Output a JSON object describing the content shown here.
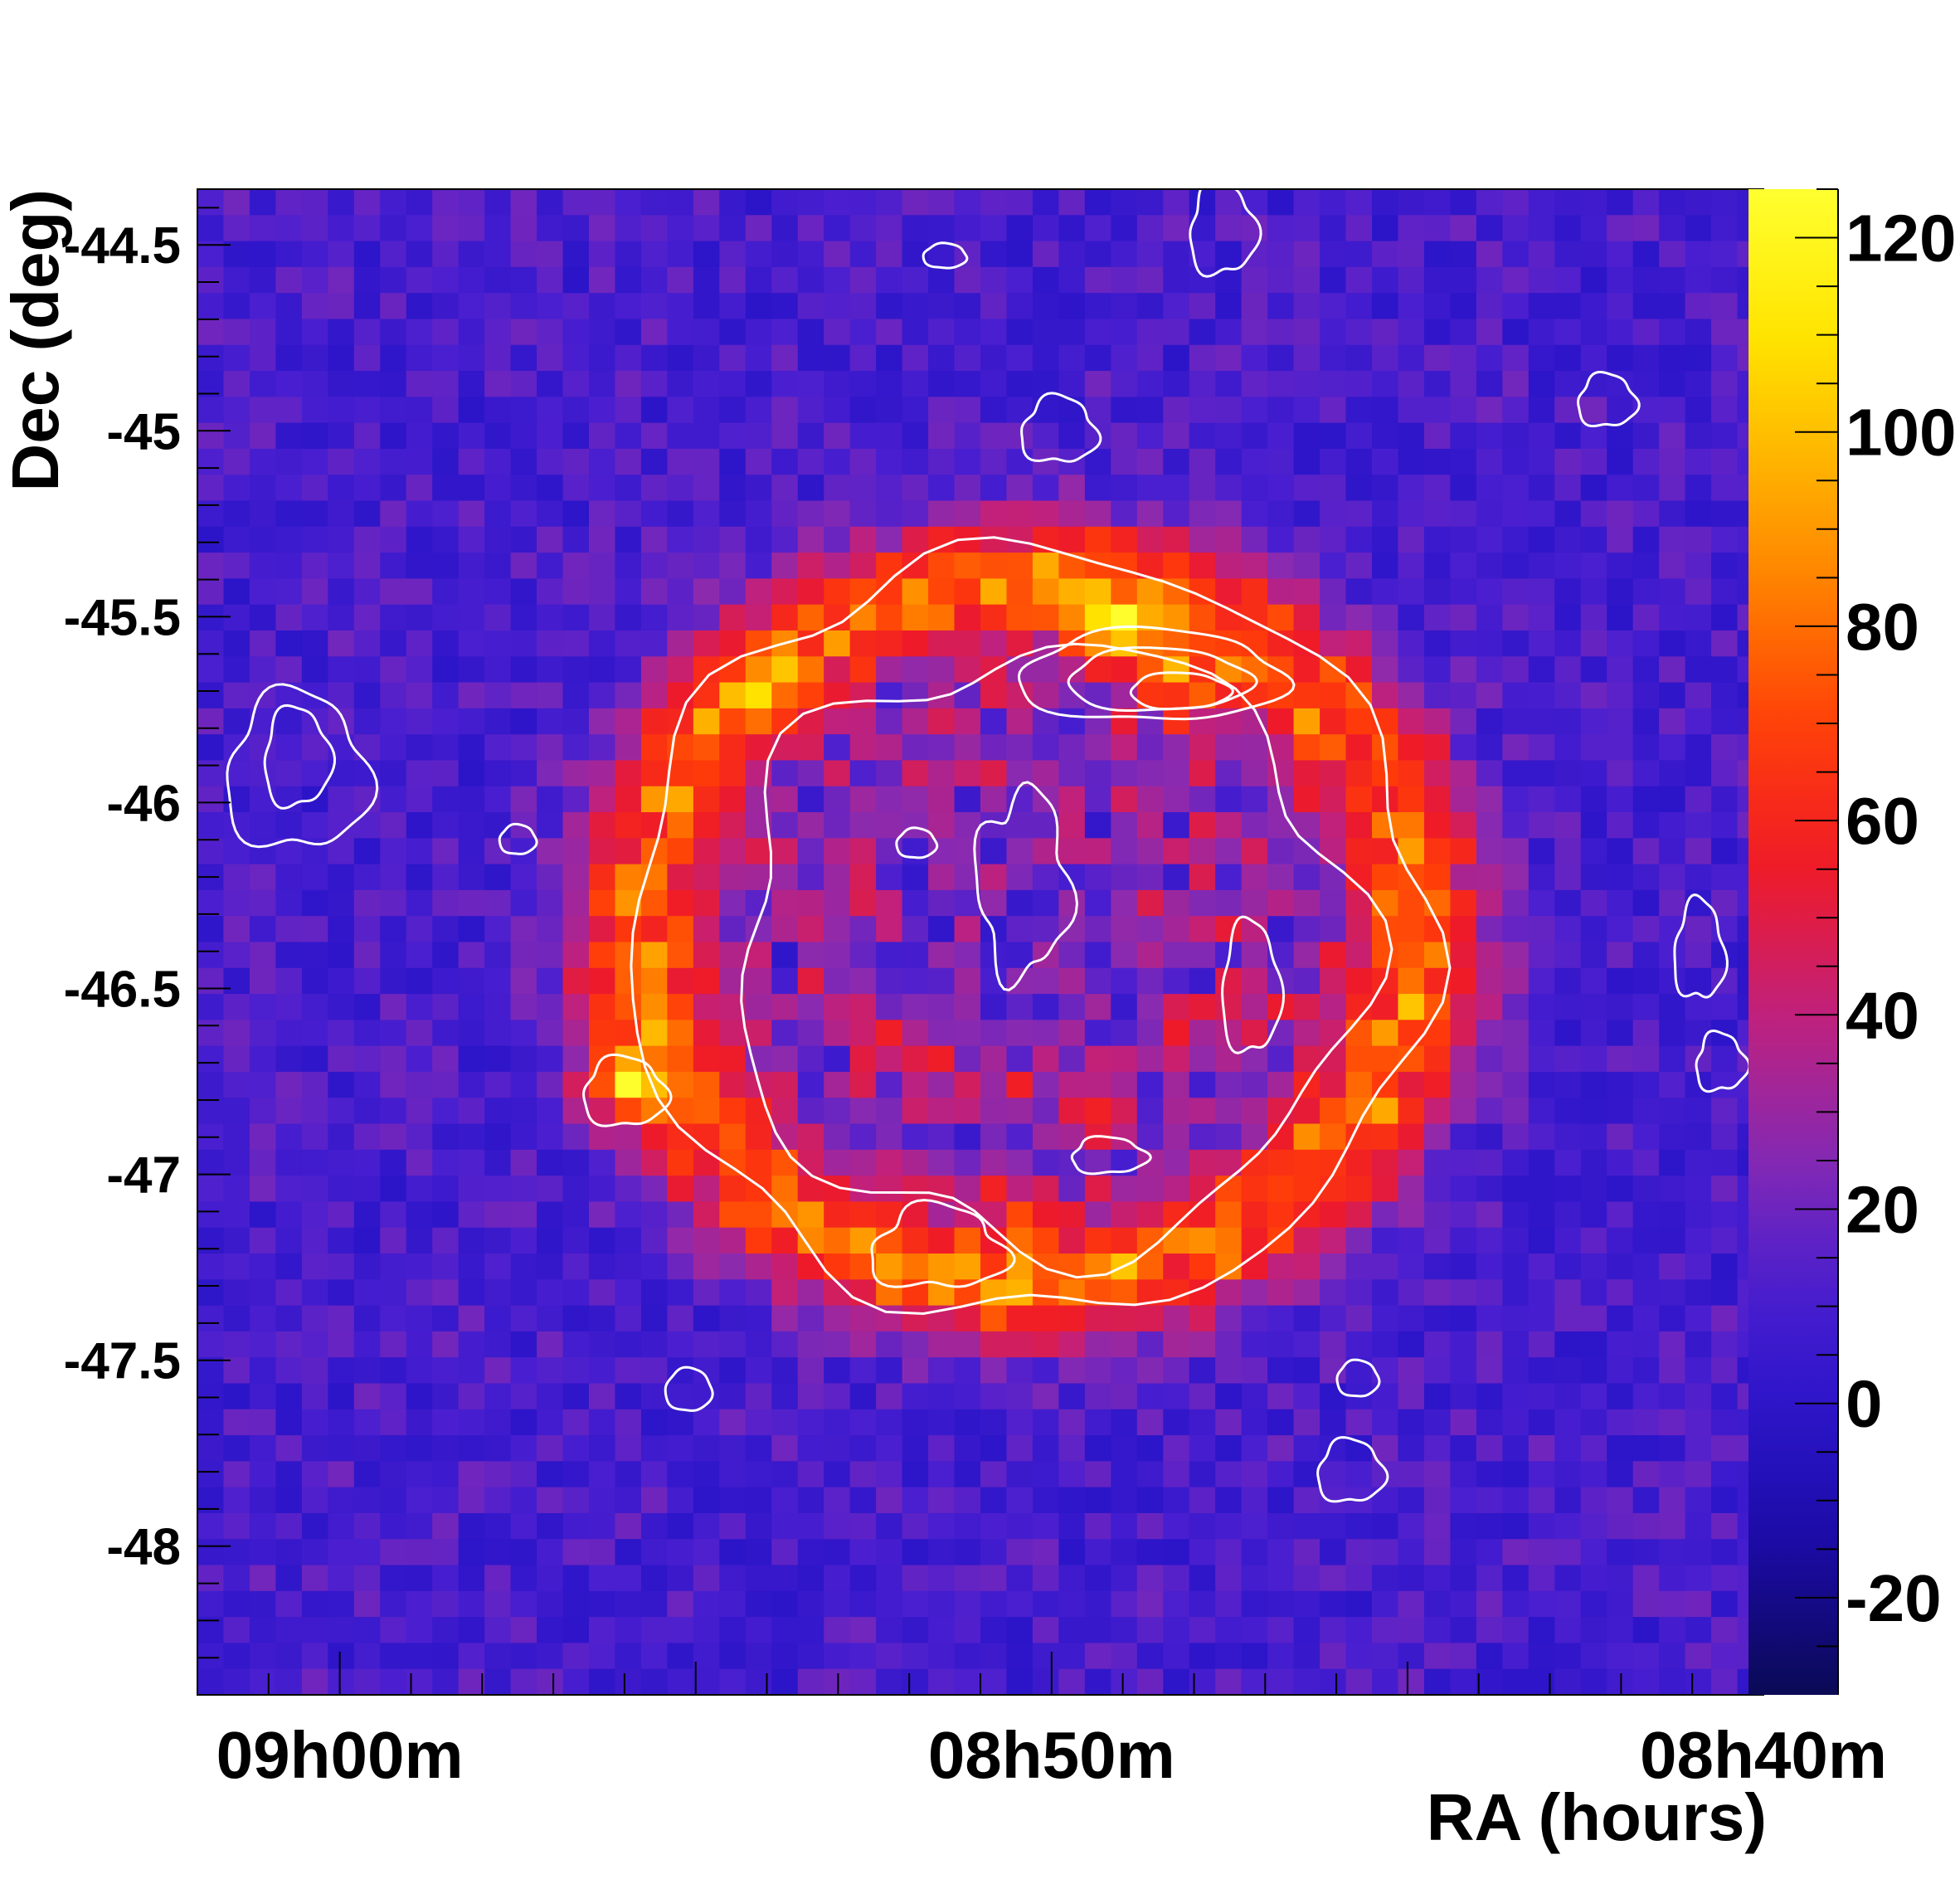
{
  "chart_data": {
    "type": "heatmap",
    "title": "",
    "xlabel": "RA (hours)",
    "ylabel": "Dec (deg)",
    "x_ticks": [
      {
        "label": "09h00m",
        "ra_min": 540
      },
      {
        "label": "08h50m",
        "ra_min": 530
      },
      {
        "label": "08h40m",
        "ra_min": 520
      }
    ],
    "x_range_ra_min": [
      542,
      520
    ],
    "y_ticks": [
      {
        "label": "-44.5",
        "value": -44.5
      },
      {
        "label": "-45",
        "value": -45
      },
      {
        "label": "-45.5",
        "value": -45.5
      },
      {
        "label": "-46",
        "value": -46
      },
      {
        "label": "-46.5",
        "value": -46.5
      },
      {
        "label": "-47",
        "value": -47
      },
      {
        "label": "-47.5",
        "value": -47.5
      },
      {
        "label": "-48",
        "value": -48
      }
    ],
    "y_range": [
      -48.4,
      -44.35
    ],
    "colorbar": {
      "range": [
        -30,
        125
      ],
      "ticks": [
        {
          "label": "120",
          "value": 120
        },
        {
          "label": "100",
          "value": 100
        },
        {
          "label": "80",
          "value": 80
        },
        {
          "label": "60",
          "value": 60
        },
        {
          "label": "40",
          "value": 40
        },
        {
          "label": "20",
          "value": 20
        },
        {
          "label": "0",
          "value": 0
        },
        {
          "label": "-20",
          "value": -20
        }
      ]
    },
    "background_level": 10,
    "shell": {
      "center_ra_min": 530.3,
      "center_dec": -46.35,
      "radius_deg": 0.95,
      "level": 80
    },
    "hotspots": [
      {
        "ra_min": 529.2,
        "dec": -45.55,
        "level": 115
      },
      {
        "ra_min": 528.2,
        "dec": -45.68,
        "level": 110
      },
      {
        "ra_min": 536.0,
        "dec": -46.75,
        "level": 120
      },
      {
        "ra_min": 527.2,
        "dec": -46.55,
        "level": 85
      },
      {
        "ra_min": 530.6,
        "dec": -47.1,
        "level": 85
      },
      {
        "ra_min": 529.3,
        "dec": -46.8,
        "level": 80
      },
      {
        "ra_min": 533.9,
        "dec": -45.7,
        "level": 85
      }
    ],
    "contour_color": "#ffffff",
    "colormap": [
      "#0a0a55",
      "#1a0aa0",
      "#2a14c8",
      "#4a1fd0",
      "#8a2ab0",
      "#c2207a",
      "#ee1a2a",
      "#ff3a0a",
      "#ff7a00",
      "#ffb400",
      "#ffe800",
      "#ffff30"
    ]
  }
}
